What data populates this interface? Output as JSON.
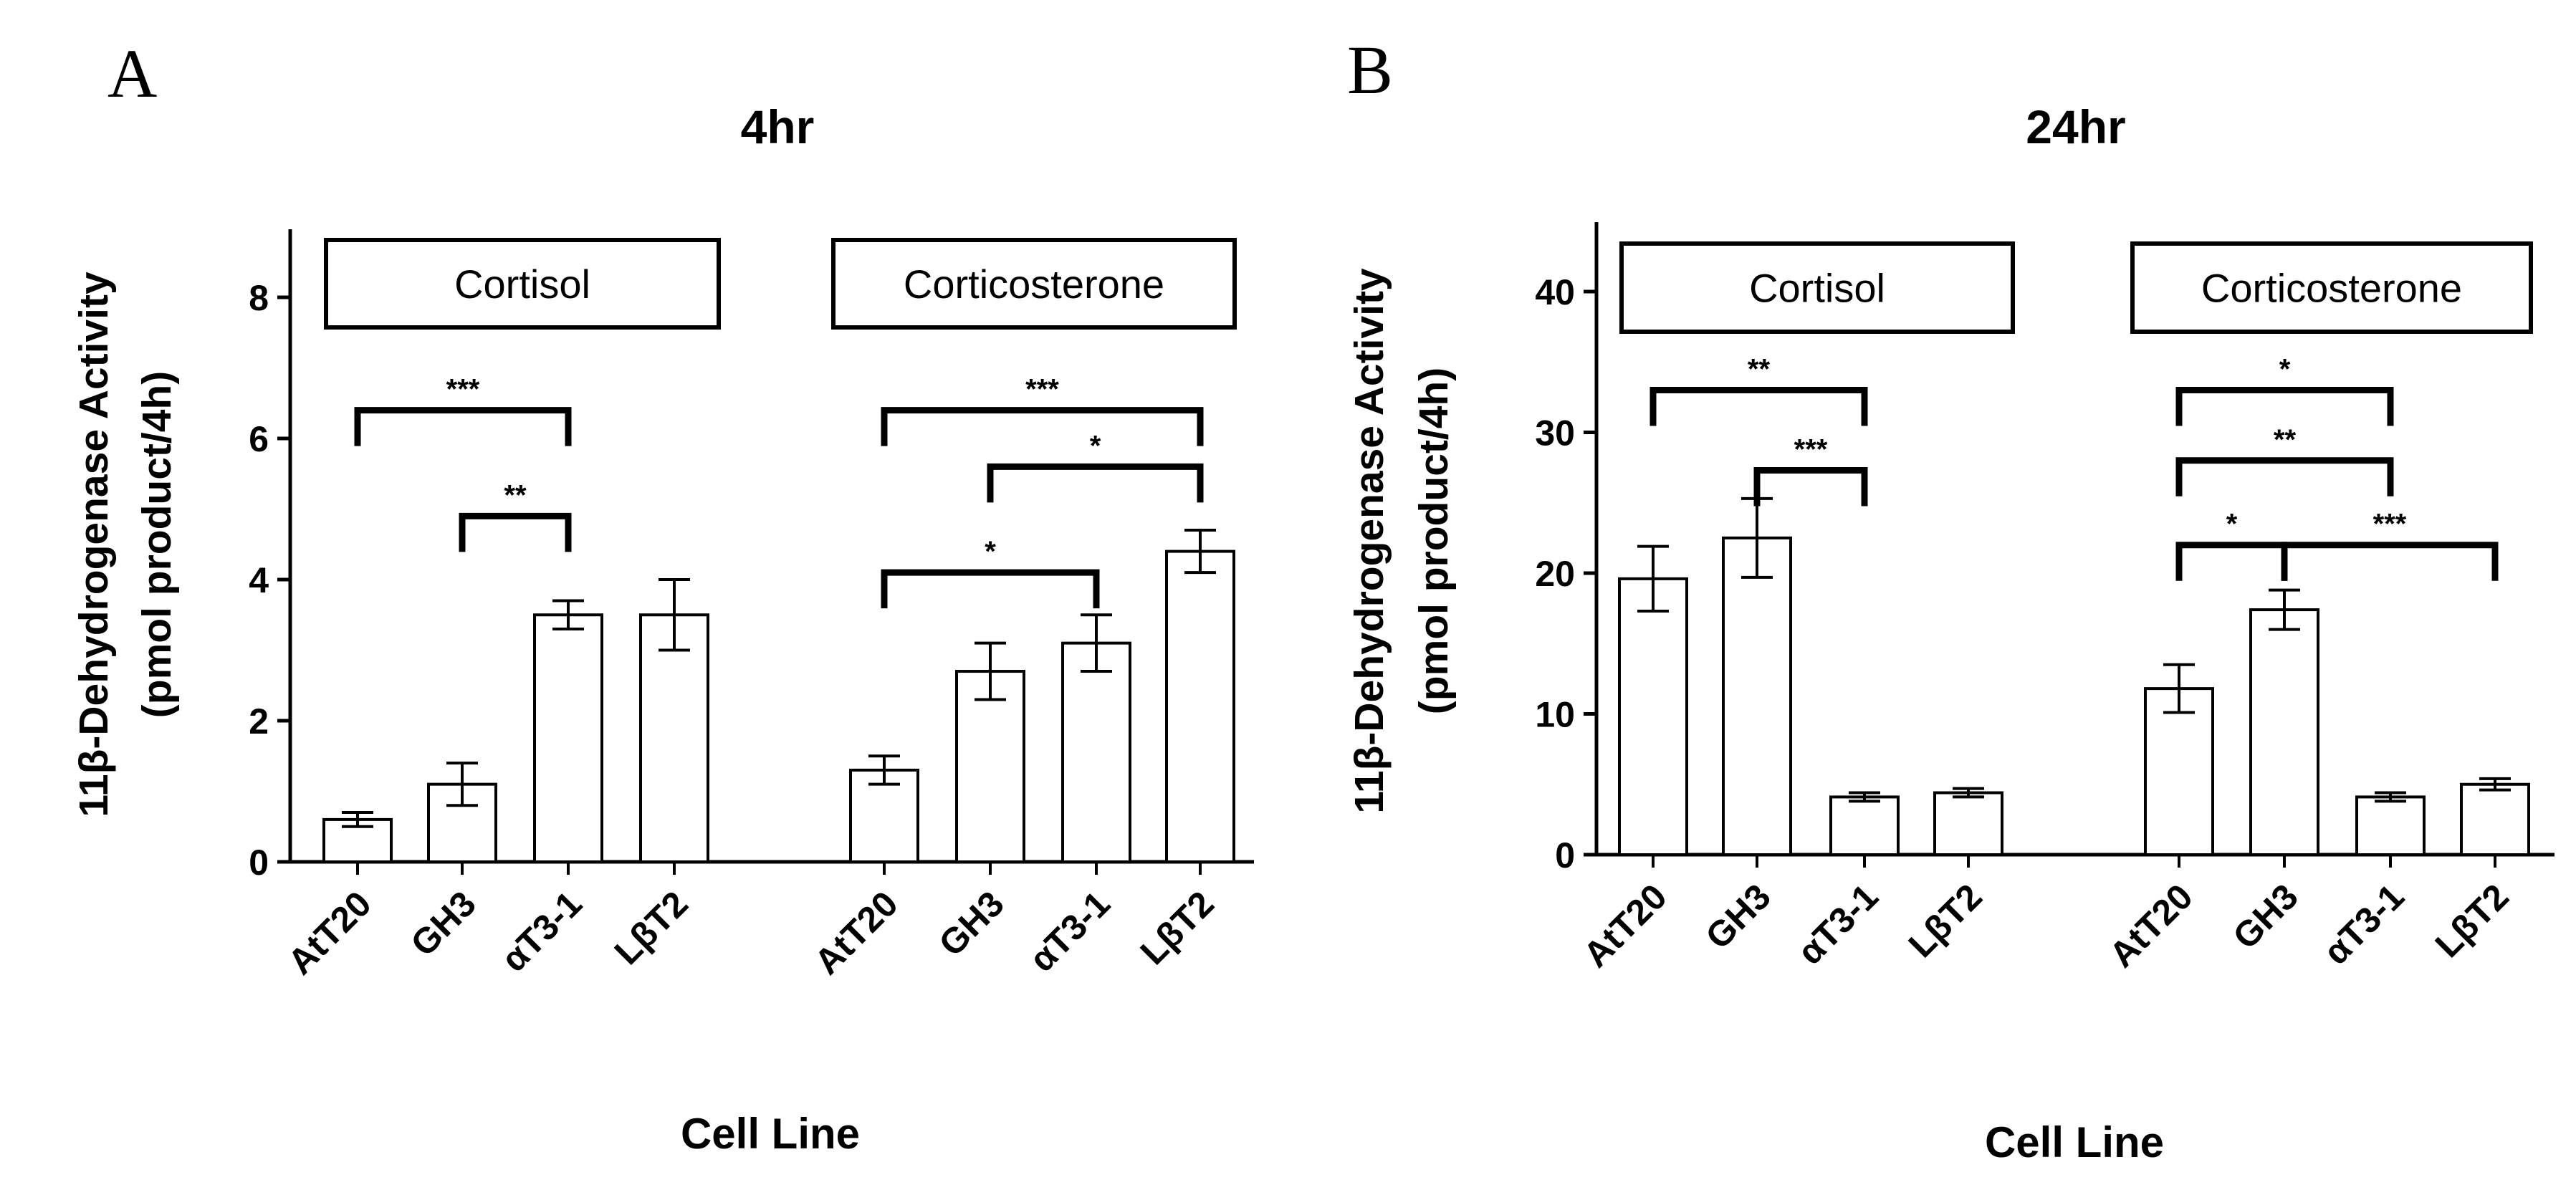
{
  "chart_data": [
    {
      "type": "bar",
      "panel_label": "A",
      "title": "4hr",
      "xlabel": "Cell Line",
      "ylabel": [
        "11β-Dehydrogenase Activity",
        "(pmol product/4h)"
      ],
      "ylim": [
        0,
        9
      ],
      "yticks": [
        0,
        2,
        4,
        6,
        8
      ],
      "categories": [
        "AtT20",
        "GH3",
        "αT3-1",
        "LβT2",
        "AtT20",
        "GH3",
        "αT3-1",
        "LβT2"
      ],
      "values": [
        0.6,
        1.1,
        3.5,
        3.5,
        1.3,
        2.7,
        3.1,
        4.4
      ],
      "errors": [
        0.1,
        0.3,
        0.2,
        0.5,
        0.2,
        0.4,
        0.4,
        0.3
      ],
      "groups": [
        {
          "label": "Cortisol",
          "first": 0,
          "last": 3
        },
        {
          "label": "Corticosterone",
          "first": 4,
          "last": 7
        }
      ],
      "significance": [
        {
          "from": 0,
          "to": 2,
          "label": "***",
          "y": 6.4
        },
        {
          "from": 1,
          "to": 2,
          "label": "**",
          "y": 4.9
        },
        {
          "from": 4,
          "to": 7,
          "label": "***",
          "y": 6.4
        },
        {
          "from": 5,
          "to": 7,
          "label": "*",
          "y": 5.6
        },
        {
          "from": 4,
          "to": 6,
          "label": "*",
          "y": 4.1
        }
      ]
    },
    {
      "type": "bar",
      "panel_label": "B",
      "title": "24hr",
      "xlabel": "Cell Line",
      "ylabel": [
        "11β-Dehydrogenase Activity",
        "(pmol product/4h)"
      ],
      "ylim": [
        0,
        45
      ],
      "yticks": [
        0,
        10,
        20,
        30,
        40
      ],
      "categories": [
        "AtT20",
        "GH3",
        "αT3-1",
        "LβT2",
        "AtT20",
        "GH3",
        "αT3-1",
        "LβT2"
      ],
      "values": [
        19.6,
        22.5,
        4.1,
        4.4,
        11.8,
        17.4,
        4.1,
        5.0
      ],
      "errors": [
        2.3,
        2.8,
        0.3,
        0.3,
        1.7,
        1.4,
        0.3,
        0.4
      ],
      "groups": [
        {
          "label": "Cortisol",
          "first": 0,
          "last": 3
        },
        {
          "label": "Corticosterone",
          "first": 4,
          "last": 7
        }
      ],
      "significance": [
        {
          "from": 0,
          "to": 2,
          "label": "**",
          "y": 33.0
        },
        {
          "from": 1,
          "to": 2,
          "label": "***",
          "y": 27.3
        },
        {
          "from": 4,
          "to": 6,
          "label": "*",
          "y": 33.0
        },
        {
          "from": 4,
          "to": 6,
          "label": "**",
          "y": 28.0
        },
        {
          "from": 4,
          "to": 5,
          "label": "*",
          "y": 22.0
        },
        {
          "from": 5,
          "to": 7,
          "label": "***",
          "y": 22.0
        }
      ]
    }
  ]
}
